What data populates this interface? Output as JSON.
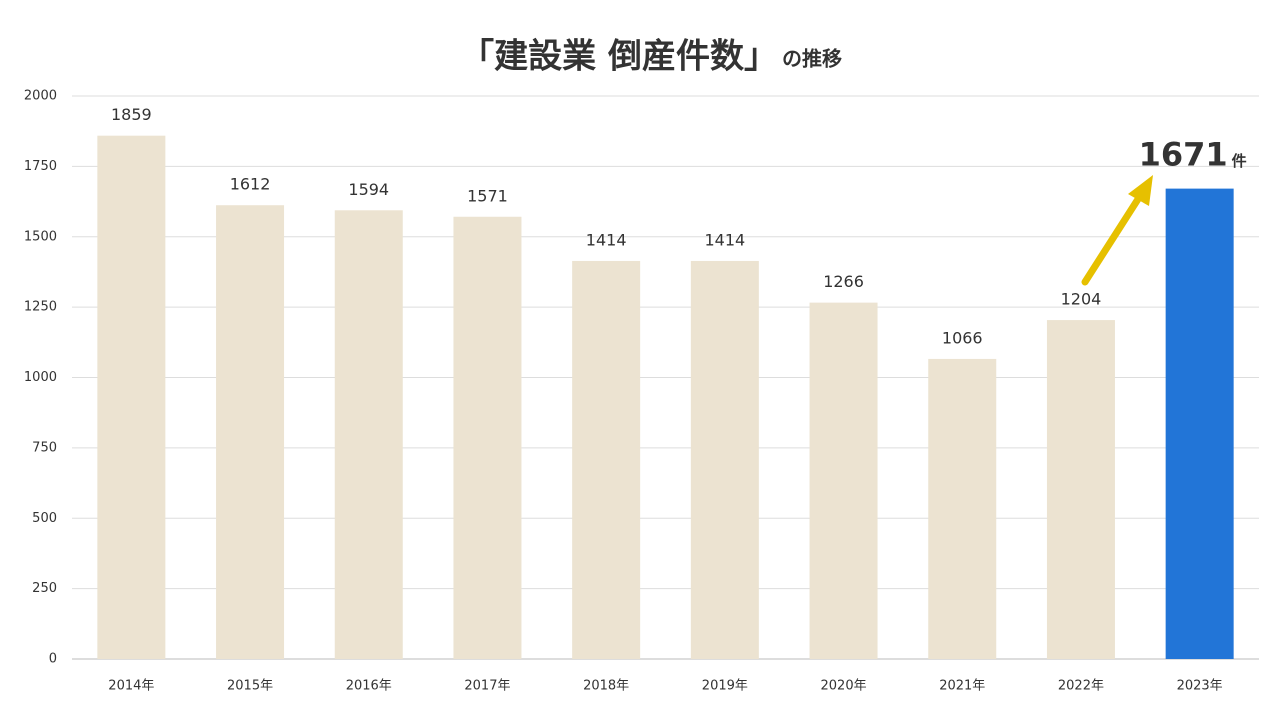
{
  "chart_data": {
    "type": "bar",
    "title": "「建設業 倒産件数」",
    "title_suffix": "の推移",
    "categories": [
      "2014年",
      "2015年",
      "2016年",
      "2017年",
      "2018年",
      "2019年",
      "2020年",
      "2021年",
      "2022年",
      "2023年"
    ],
    "values": [
      1859,
      1612,
      1594,
      1571,
      1414,
      1414,
      1266,
      1066,
      1204,
      1671
    ],
    "colors": [
      "#ece3d1",
      "#ece3d1",
      "#ece3d1",
      "#ece3d1",
      "#ece3d1",
      "#ece3d1",
      "#ece3d1",
      "#ece3d1",
      "#ece3d1",
      "#2275d7"
    ],
    "highlight_unit": "件",
    "ylim": [
      0,
      2000
    ],
    "yticks": [
      0,
      250,
      500,
      750,
      1000,
      1250,
      1500,
      1750,
      2000
    ],
    "grid": true
  }
}
